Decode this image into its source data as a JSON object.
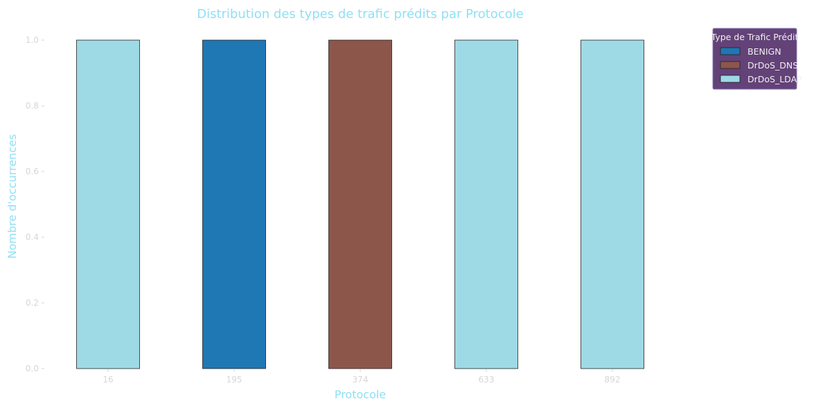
{
  "chart_data": {
    "type": "bar",
    "title": "Distribution des types de trafic prédits par Protocole",
    "xlabel": "Protocole",
    "ylabel": "Nombre d'occurrences",
    "categories": [
      "16",
      "195",
      "374",
      "633",
      "892"
    ],
    "series": [
      {
        "name": "BENIGN",
        "color": "#1f77b4",
        "values": [
          0,
          1,
          0,
          0,
          0
        ]
      },
      {
        "name": "DrDoS_DNS",
        "color": "#8c564b",
        "values": [
          0,
          0,
          1,
          0,
          0
        ]
      },
      {
        "name": "DrDoS_LDAP",
        "color": "#9edae5",
        "values": [
          1,
          0,
          0,
          1,
          1
        ]
      }
    ],
    "stacked": true,
    "ylim": [
      0,
      1.0
    ],
    "yticks": [
      "0.0",
      "0.2",
      "0.4",
      "0.6",
      "0.8",
      "1.0"
    ],
    "grid": false,
    "legend": {
      "title": "Type de Trafic Prédit",
      "placement": "top-right-outside"
    }
  }
}
